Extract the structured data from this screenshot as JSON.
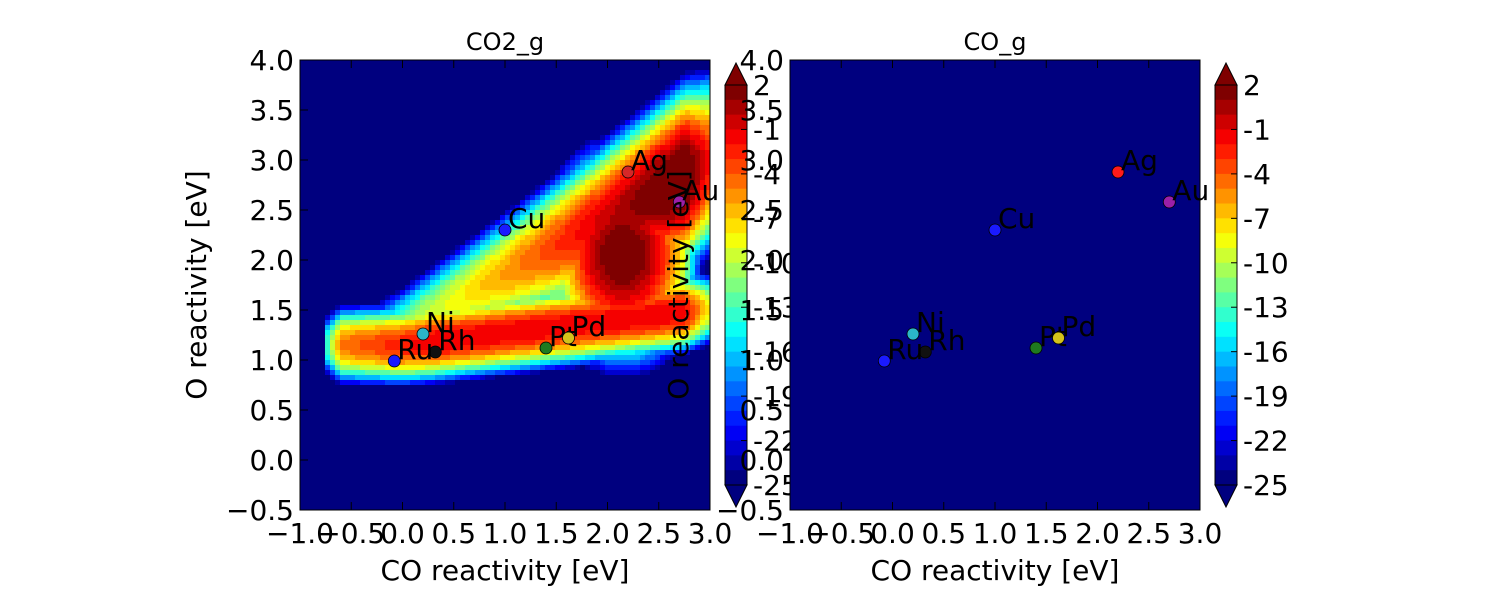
{
  "chart_data": [
    {
      "type": "heatmap",
      "title": "CO2_g",
      "xlabel": "CO reactivity [eV]",
      "ylabel": "O reactivity [eV]",
      "xlim": [
        -1.0,
        3.0
      ],
      "ylim": [
        -0.5,
        4.0
      ],
      "x_ticks": [
        "−1.0",
        "−0.5",
        "0.0",
        "0.5",
        "1.0",
        "1.5",
        "2.0",
        "2.5",
        "3.0"
      ],
      "y_ticks": [
        "−0.5",
        "0.0",
        "0.5",
        "1.0",
        "1.5",
        "2.0",
        "2.5",
        "3.0",
        "3.5",
        "4.0"
      ],
      "field": "ridge",
      "points": [
        {
          "label": "Ag",
          "x": 2.2,
          "y": 2.88,
          "color": "#d62728"
        },
        {
          "label": "Au",
          "x": 2.7,
          "y": 2.58,
          "color": "#9b1fa8"
        },
        {
          "label": "Cu",
          "x": 1.0,
          "y": 2.3,
          "color": "#1a1aff"
        },
        {
          "label": "Ni",
          "x": 0.2,
          "y": 1.26,
          "color": "#2bb5c8"
        },
        {
          "label": "Rh",
          "x": 0.32,
          "y": 1.08,
          "color": "#111111"
        },
        {
          "label": "Ru",
          "x": -0.08,
          "y": 0.99,
          "color": "#1a1aff"
        },
        {
          "label": "Pt",
          "x": 1.4,
          "y": 1.12,
          "color": "#1f7a1f"
        },
        {
          "label": "Pd",
          "x": 1.62,
          "y": 1.22,
          "color": "#d4c21a"
        }
      ]
    },
    {
      "type": "heatmap",
      "title": "CO_g",
      "xlabel": "CO reactivity [eV]",
      "ylabel": "O reactivity [eV]",
      "xlim": [
        -1.0,
        3.0
      ],
      "ylim": [
        -0.5,
        4.0
      ],
      "x_ticks": [
        "−1.0",
        "−0.5",
        "0.0",
        "0.5",
        "1.0",
        "1.5",
        "2.0",
        "2.5",
        "3.0"
      ],
      "y_ticks": [
        "−0.5",
        "0.0",
        "0.5",
        "1.0",
        "1.5",
        "2.0",
        "2.5",
        "3.0",
        "3.5",
        "4.0"
      ],
      "field": "uniform_min",
      "points": [
        {
          "label": "Ag",
          "x": 2.2,
          "y": 2.88,
          "color": "#ff1a1a"
        },
        {
          "label": "Au",
          "x": 2.7,
          "y": 2.58,
          "color": "#9b1fa8"
        },
        {
          "label": "Cu",
          "x": 1.0,
          "y": 2.3,
          "color": "#1a1aff"
        },
        {
          "label": "Ni",
          "x": 0.2,
          "y": 1.26,
          "color": "#2bb5c8"
        },
        {
          "label": "Rh",
          "x": 0.32,
          "y": 1.08,
          "color": "#111111"
        },
        {
          "label": "Ru",
          "x": -0.08,
          "y": 0.99,
          "color": "#1a1aff"
        },
        {
          "label": "Pt",
          "x": 1.4,
          "y": 1.12,
          "color": "#1f7a1f"
        },
        {
          "label": "Pd",
          "x": 1.62,
          "y": 1.22,
          "color": "#d4c21a"
        }
      ]
    }
  ],
  "colorbar": {
    "ticks": [
      "2",
      "-1",
      "-4",
      "-7",
      "-10",
      "-13",
      "-16",
      "-19",
      "-22",
      "-25"
    ],
    "range": [
      -25,
      2
    ],
    "colormap": [
      "#00007f",
      "#0000ff",
      "#007fff",
      "#00ffff",
      "#7fff7f",
      "#ffff00",
      "#ff7f00",
      "#ff0000",
      "#7f0000"
    ]
  }
}
